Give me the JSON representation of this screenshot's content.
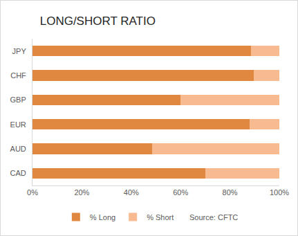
{
  "chart_data": {
    "type": "bar",
    "orientation": "horizontal",
    "stacked": true,
    "title": "LONG/SHORT RATIO",
    "categories": [
      "JPY",
      "CHF",
      "GBP",
      "EUR",
      "AUD",
      "CAD"
    ],
    "series": [
      {
        "name": "% Long",
        "color": "#E0883F",
        "values": [
          88.5,
          89.5,
          60,
          88,
          48.5,
          70
        ]
      },
      {
        "name": "% Short",
        "color": "#F8BA91",
        "values": [
          11.5,
          10.5,
          40,
          12,
          51.5,
          30
        ]
      }
    ],
    "xlim": [
      0,
      100
    ],
    "xticks": [
      {
        "value": 0,
        "label": "0%"
      },
      {
        "value": 20,
        "label": "20%"
      },
      {
        "value": 40,
        "label": "40%"
      },
      {
        "value": 60,
        "label": "60%"
      },
      {
        "value": 80,
        "label": "80%"
      },
      {
        "value": 100,
        "label": "100%"
      }
    ],
    "grid": false,
    "legend": "bottom",
    "annotations": [
      "Source: CFTC"
    ]
  }
}
